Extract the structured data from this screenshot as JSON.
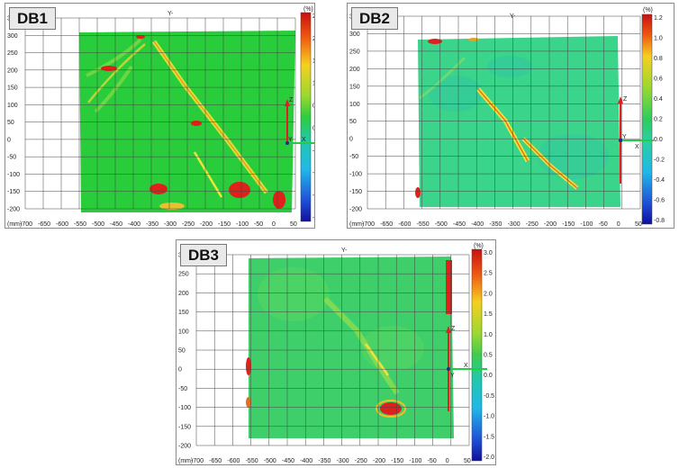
{
  "panels": [
    {
      "label": "DB1",
      "axis_top": "Y-",
      "unit_mm": "(mm)",
      "unit_pct": "(%)",
      "axis_z": "Z",
      "axis_y": "Y",
      "axis_x": "X",
      "y_ticks": [
        "350",
        "300",
        "250",
        "200",
        "150",
        "100",
        "50",
        "0",
        "-50",
        "-100",
        "-150",
        "-200"
      ],
      "x_ticks": [
        "-700",
        "-650",
        "-600",
        "-550",
        "-500",
        "-450",
        "-400",
        "-350",
        "-300",
        "-250",
        "-200",
        "-150",
        "-100",
        "-50",
        "0",
        "50"
      ],
      "scale_ticks": [
        "2.5",
        "2.0",
        "1.5",
        "1.0",
        "0.5",
        "0.0",
        "-0.5",
        "-1.0",
        "-1.5",
        "-2.0"
      ]
    },
    {
      "label": "DB2",
      "axis_top": "Y-",
      "unit_mm": "(mm)",
      "unit_pct": "(%)",
      "axis_z": "Z",
      "axis_y": "Y",
      "axis_x": "X",
      "y_ticks": [
        "350",
        "300",
        "250",
        "200",
        "150",
        "100",
        "50",
        "0",
        "-50",
        "-100",
        "-150",
        "-200"
      ],
      "x_ticks": [
        "-700",
        "-650",
        "-600",
        "-550",
        "-500",
        "-450",
        "-400",
        "-350",
        "-300",
        "-250",
        "-200",
        "-150",
        "-100",
        "-50",
        "0",
        "50"
      ],
      "scale_ticks": [
        "1.2",
        "1.0",
        "0.8",
        "0.6",
        "0.4",
        "0.2",
        "0.0",
        "-0.2",
        "-0.4",
        "-0.6",
        "-0.8"
      ]
    },
    {
      "label": "DB3",
      "axis_top": "Y-",
      "unit_mm": "(mm)",
      "unit_pct": "(%)",
      "axis_z": "Z",
      "axis_y": "Y",
      "axis_x": "X",
      "y_ticks": [
        "300",
        "250",
        "200",
        "150",
        "100",
        "50",
        "0",
        "-50",
        "-100",
        "-150",
        "-200"
      ],
      "x_ticks": [
        "-700",
        "-650",
        "-600",
        "-550",
        "-500",
        "-450",
        "-400",
        "-350",
        "-300",
        "-250",
        "-200",
        "-150",
        "-100",
        "-50",
        "0",
        "50"
      ],
      "scale_ticks": [
        "3.0",
        "2.5",
        "2.0",
        "1.5",
        "1.0",
        "0.5",
        "0.0",
        "-0.5",
        "-1.0",
        "-1.5",
        "-2.0"
      ]
    }
  ],
  "colors": {
    "field": "#29cc3a",
    "field_db2": "#3ad48a",
    "field_db3": "#3fcf6a",
    "crack": "#f2e23a",
    "hot": "#e0201a",
    "grid": "#444444",
    "z_axis": "#e02020",
    "x_axis": "#22cc44",
    "y_point": "#1a2e8a"
  }
}
